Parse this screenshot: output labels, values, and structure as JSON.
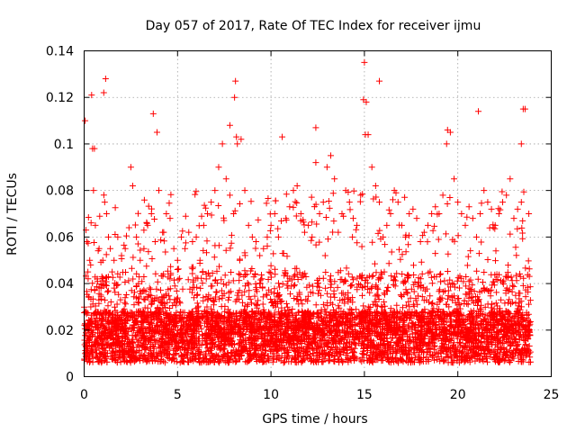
{
  "chart_data": {
    "type": "scatter",
    "title": "Day 057 of 2017, Rate Of TEC Index for receiver ijmu",
    "xlabel": "GPS time / hours",
    "ylabel": "ROTI / TECUs",
    "xlim": [
      0,
      25
    ],
    "ylim": [
      0,
      0.14
    ],
    "xticks": [
      0,
      5,
      10,
      15,
      20,
      25
    ],
    "xtick_labels": [
      "0",
      "5",
      "10",
      "15",
      "20",
      "25"
    ],
    "yticks": [
      0,
      0.02,
      0.04,
      0.06,
      0.08,
      0.1,
      0.12,
      0.14
    ],
    "ytick_labels": [
      "0",
      "0.02",
      "0.04",
      "0.06",
      "0.08",
      "0.1",
      "0.12",
      "0.14"
    ],
    "grid": true,
    "marker": "plus",
    "color": "#ff0000",
    "series": [
      {
        "name": "ROTI",
        "x": [
          0.05,
          0.1,
          0.15,
          0.2,
          0.3,
          0.35,
          0.4,
          0.5,
          0.55,
          0.6,
          0.7,
          0.8,
          0.9,
          1.0,
          1.1,
          1.2,
          1.3,
          1.4,
          1.5,
          1.6,
          1.8,
          2.0,
          2.2,
          2.4,
          2.5,
          2.6,
          2.8,
          3.0,
          3.2,
          3.4,
          3.6,
          3.8,
          3.9,
          4.0,
          4.2,
          4.4,
          4.6,
          4.8,
          5.0,
          5.2,
          5.4,
          5.6,
          5.8,
          6.0,
          6.2,
          6.4,
          6.6,
          6.8,
          7.0,
          7.2,
          7.4,
          7.6,
          7.8,
          8.0,
          8.1,
          8.2,
          8.4,
          8.6,
          8.8,
          9.0,
          9.2,
          9.4,
          9.6,
          9.8,
          10.0,
          10.2,
          10.4,
          10.6,
          10.8,
          11.0,
          11.2,
          11.4,
          11.6,
          11.8,
          12.0,
          12.2,
          12.4,
          12.6,
          12.8,
          13.0,
          13.2,
          13.4,
          13.6,
          13.8,
          14.0,
          14.2,
          14.4,
          14.6,
          14.8,
          15.0,
          15.1,
          15.2,
          15.4,
          15.6,
          15.8,
          16.0,
          16.2,
          16.4,
          16.6,
          16.8,
          17.0,
          17.2,
          17.4,
          17.6,
          17.8,
          18.0,
          18.2,
          18.4,
          18.6,
          18.8,
          19.0,
          19.2,
          19.4,
          19.6,
          19.8,
          20.0,
          20.2,
          20.4,
          20.6,
          20.8,
          21.0,
          21.2,
          21.4,
          21.6,
          21.8,
          22.0,
          22.2,
          22.4,
          22.6,
          22.8,
          23.0,
          23.2,
          23.4,
          23.6,
          23.8,
          0.45,
          1.05,
          1.15,
          3.7,
          7.8,
          8.05,
          8.15,
          12.4,
          14.95,
          15.05,
          15.8,
          19.45,
          21.1,
          23.4,
          23.5
        ],
        "y": [
          0.11,
          0.063,
          0.058,
          0.045,
          0.05,
          0.048,
          0.121,
          0.08,
          0.098,
          0.065,
          0.042,
          0.055,
          0.038,
          0.05,
          0.075,
          0.07,
          0.06,
          0.055,
          0.045,
          0.05,
          0.06,
          0.052,
          0.055,
          0.064,
          0.09,
          0.082,
          0.06,
          0.05,
          0.055,
          0.065,
          0.07,
          0.058,
          0.105,
          0.08,
          0.062,
          0.07,
          0.068,
          0.055,
          0.05,
          0.06,
          0.055,
          0.062,
          0.058,
          0.06,
          0.05,
          0.065,
          0.07,
          0.075,
          0.08,
          0.09,
          0.1,
          0.085,
          0.078,
          0.07,
          0.127,
          0.1,
          0.102,
          0.08,
          0.065,
          0.06,
          0.058,
          0.052,
          0.055,
          0.06,
          0.065,
          0.07,
          0.06,
          0.103,
          0.068,
          0.073,
          0.08,
          0.082,
          0.07,
          0.062,
          0.065,
          0.06,
          0.107,
          0.07,
          0.075,
          0.09,
          0.095,
          0.085,
          0.062,
          0.07,
          0.08,
          0.075,
          0.068,
          0.065,
          0.078,
          0.135,
          0.118,
          0.104,
          0.09,
          0.082,
          0.075,
          0.06,
          0.065,
          0.07,
          0.08,
          0.075,
          0.065,
          0.06,
          0.07,
          0.072,
          0.068,
          0.058,
          0.062,
          0.065,
          0.07,
          0.073,
          0.07,
          0.078,
          0.1,
          0.105,
          0.085,
          0.075,
          0.07,
          0.065,
          0.073,
          0.068,
          0.06,
          0.07,
          0.08,
          0.075,
          0.072,
          0.065,
          0.07,
          0.075,
          0.078,
          0.085,
          0.068,
          0.072,
          0.075,
          0.115,
          0.07,
          0.098,
          0.122,
          0.128,
          0.113,
          0.108,
          0.12,
          0.103,
          0.092,
          0.119,
          0.104,
          0.127,
          0.106,
          0.114,
          0.1,
          0.115
        ]
      }
    ]
  }
}
